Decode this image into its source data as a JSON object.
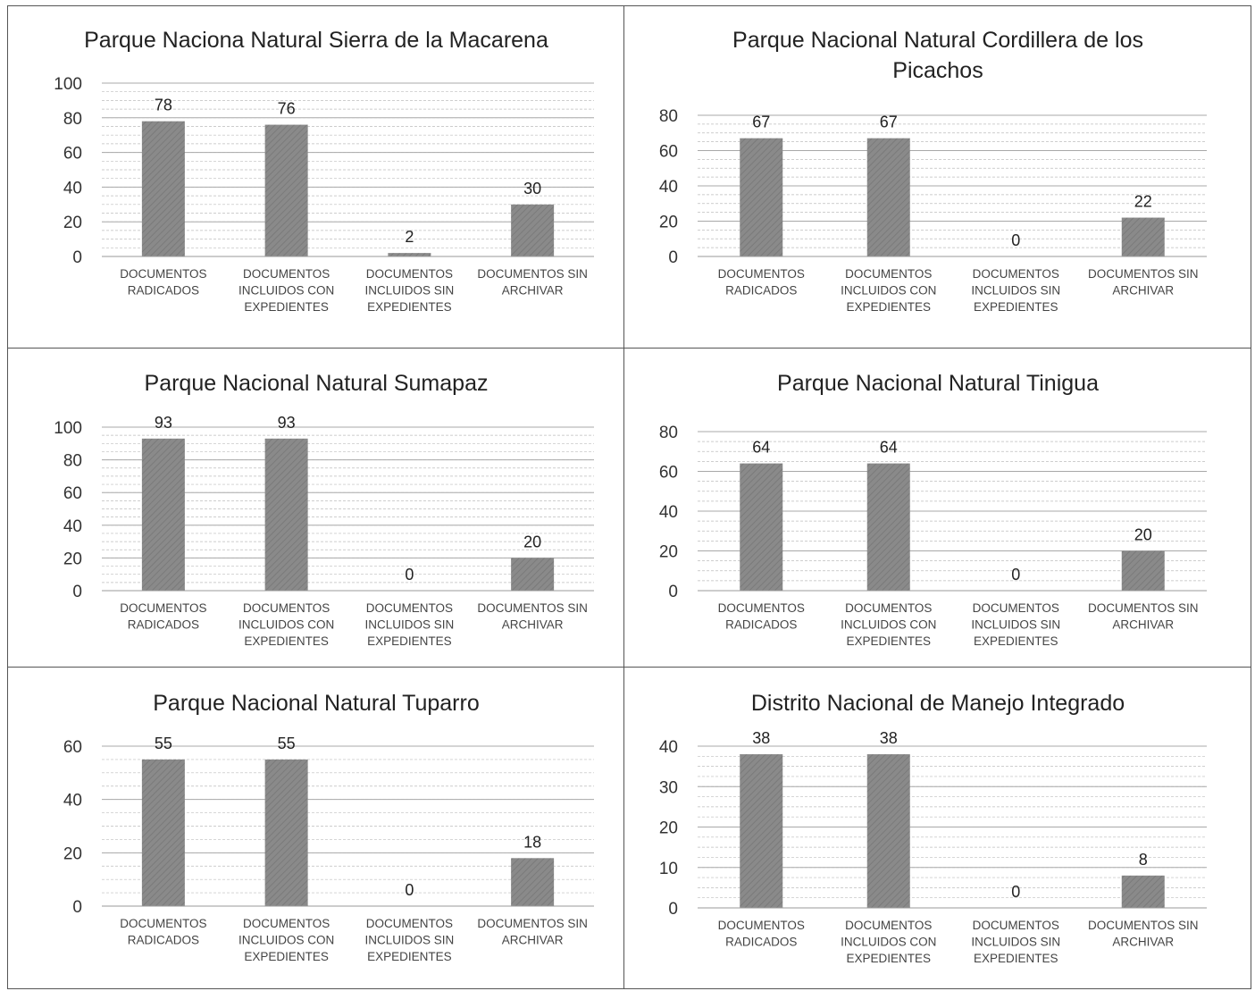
{
  "chart_data": [
    {
      "type": "bar",
      "title": "Parque Naciona Natural Sierra de la Macarena",
      "categories": [
        [
          "DOCUMENTOS",
          "RADICADOS"
        ],
        [
          "DOCUMENTOS",
          "INCLUIDOS CON",
          "EXPEDIENTES"
        ],
        [
          "DOCUMENTOS",
          "INCLUIDOS SIN",
          "EXPEDIENTES"
        ],
        [
          "DOCUMENTOS SIN",
          "ARCHIVAR"
        ]
      ],
      "values": [
        78,
        76,
        2,
        30
      ],
      "ylim": [
        0,
        100
      ],
      "yticks": [
        0,
        20,
        40,
        60,
        80,
        100
      ],
      "grid": true
    },
    {
      "type": "bar",
      "title": "Parque Nacional Natural Cordillera de los Picachos",
      "categories": [
        [
          "DOCUMENTOS",
          "RADICADOS"
        ],
        [
          "DOCUMENTOS",
          "INCLUIDOS CON",
          "EXPEDIENTES"
        ],
        [
          "DOCUMENTOS",
          "INCLUIDOS SIN",
          "EXPEDIENTES"
        ],
        [
          "DOCUMENTOS SIN",
          "ARCHIVAR"
        ]
      ],
      "values": [
        67,
        67,
        0,
        22
      ],
      "ylim": [
        0,
        80
      ],
      "yticks": [
        0,
        20,
        40,
        60,
        80
      ],
      "grid": true
    },
    {
      "type": "bar",
      "title": "Parque Nacional Natural Sumapaz",
      "categories": [
        [
          "DOCUMENTOS",
          "RADICADOS"
        ],
        [
          "DOCUMENTOS",
          "INCLUIDOS CON",
          "EXPEDIENTES"
        ],
        [
          "DOCUMENTOS",
          "INCLUIDOS SIN",
          "EXPEDIENTES"
        ],
        [
          "DOCUMENTOS SIN",
          "ARCHIVAR"
        ]
      ],
      "values": [
        93,
        93,
        0,
        20
      ],
      "ylim": [
        0,
        100
      ],
      "yticks": [
        0,
        20,
        40,
        60,
        80,
        100
      ],
      "grid": true
    },
    {
      "type": "bar",
      "title": "Parque Nacional Natural Tinigua",
      "categories": [
        [
          "DOCUMENTOS",
          "RADICADOS"
        ],
        [
          "DOCUMENTOS",
          "INCLUIDOS CON",
          "EXPEDIENTES"
        ],
        [
          "DOCUMENTOS",
          "INCLUIDOS SIN",
          "EXPEDIENTES"
        ],
        [
          "DOCUMENTOS SIN",
          "ARCHIVAR"
        ]
      ],
      "values": [
        64,
        64,
        0,
        20
      ],
      "ylim": [
        0,
        80
      ],
      "yticks": [
        0,
        20,
        40,
        60,
        80
      ],
      "grid": true
    },
    {
      "type": "bar",
      "title": "Parque Nacional Natural Tuparro",
      "categories": [
        [
          "DOCUMENTOS",
          "RADICADOS"
        ],
        [
          "DOCUMENTOS",
          "INCLUIDOS CON",
          "EXPEDIENTES"
        ],
        [
          "DOCUMENTOS",
          "INCLUIDOS SIN",
          "EXPEDIENTES"
        ],
        [
          "DOCUMENTOS SIN",
          "ARCHIVAR"
        ]
      ],
      "values": [
        55,
        55,
        0,
        18
      ],
      "ylim": [
        0,
        60
      ],
      "yticks": [
        0,
        20,
        40,
        60
      ],
      "grid": true
    },
    {
      "type": "bar",
      "title": "Distrito Nacional de Manejo Integrado",
      "categories": [
        [
          "DOCUMENTOS",
          "RADICADOS"
        ],
        [
          "DOCUMENTOS",
          "INCLUIDOS CON",
          "EXPEDIENTES"
        ],
        [
          "DOCUMENTOS",
          "INCLUIDOS SIN",
          "EXPEDIENTES"
        ],
        [
          "DOCUMENTOS SIN",
          "ARCHIVAR"
        ]
      ],
      "values": [
        38,
        38,
        0,
        8
      ],
      "ylim": [
        0,
        40
      ],
      "yticks": [
        0,
        10,
        20,
        30,
        40
      ],
      "grid": true
    }
  ],
  "colors": {
    "bar": "#8a8a8a",
    "bar_hatch": "#7a7a7a",
    "grid": "#bdbdbd",
    "border": "#555555"
  }
}
